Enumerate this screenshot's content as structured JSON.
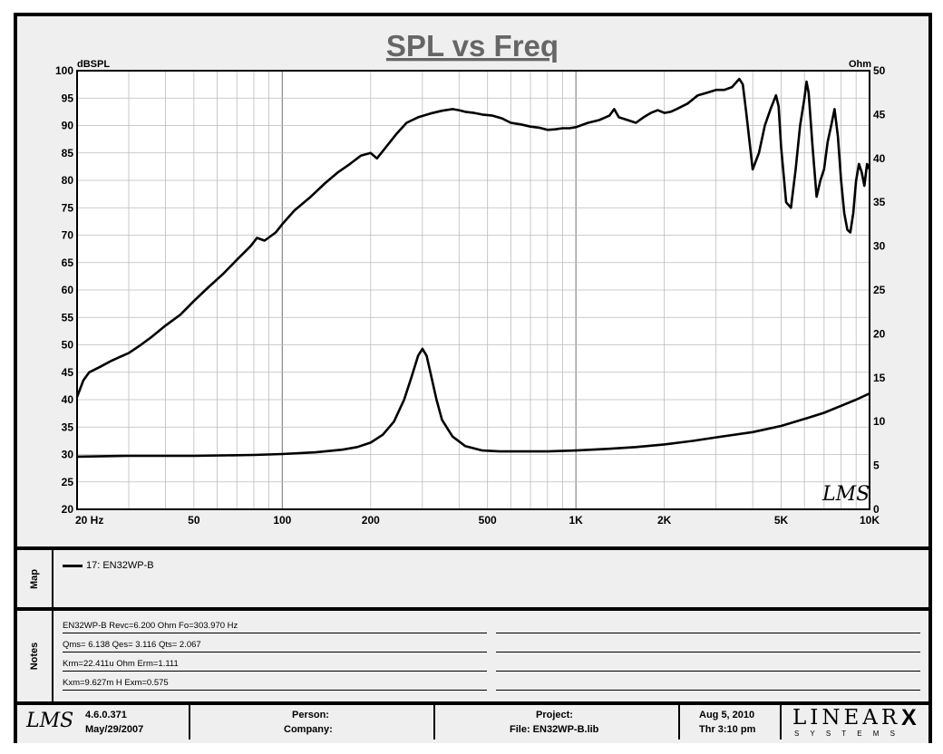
{
  "chart_data": {
    "type": "line",
    "title": "SPL vs Freq",
    "left_axis_unit": "dBSPL",
    "right_axis_unit": "Ohm",
    "x_scale": "log",
    "xlim": [
      20,
      10000
    ],
    "ylim_left": [
      20,
      100
    ],
    "ylim_right": [
      0,
      50
    ],
    "x_tick_labels": [
      {
        "value": 20,
        "label": "20  Hz"
      },
      {
        "value": 50,
        "label": "50"
      },
      {
        "value": 100,
        "label": "100"
      },
      {
        "value": 200,
        "label": "200"
      },
      {
        "value": 500,
        "label": "500"
      },
      {
        "value": 1000,
        "label": "1K"
      },
      {
        "value": 2000,
        "label": "2K"
      },
      {
        "value": 5000,
        "label": "5K"
      },
      {
        "value": 10000,
        "label": "10K"
      }
    ],
    "y_left_ticks": [
      20,
      25,
      30,
      35,
      40,
      45,
      50,
      55,
      60,
      65,
      70,
      75,
      80,
      85,
      90,
      95,
      100
    ],
    "y_right_ticks": [
      0,
      5,
      10,
      15,
      20,
      25,
      30,
      35,
      40,
      45,
      50
    ],
    "grid": true,
    "watermark": "LMS",
    "series": [
      {
        "axis": "left",
        "x": [
          20,
          21,
          22,
          24,
          26,
          28,
          30,
          33,
          36,
          40,
          45,
          50,
          56,
          63,
          70,
          78,
          82,
          87,
          95,
          100,
          110,
          125,
          140,
          155,
          170,
          185,
          200,
          210,
          225,
          245,
          265,
          290,
          320,
          350,
          380,
          400,
          420,
          450,
          480,
          520,
          560,
          600,
          650,
          700,
          750,
          800,
          850,
          900,
          950,
          1000,
          1100,
          1200,
          1300,
          1350,
          1400,
          1500,
          1600,
          1700,
          1800,
          1900,
          2000,
          2100,
          2200,
          2400,
          2600,
          2800,
          3000,
          3200,
          3400,
          3600,
          3700,
          3800,
          4000,
          4200,
          4400,
          4600,
          4800,
          4900,
          5000,
          5200,
          5400,
          5600,
          5800,
          6000,
          6100,
          6200,
          6400,
          6600,
          6800,
          7000,
          7200,
          7400,
          7600,
          7800,
          8000,
          8200,
          8400,
          8600,
          8800,
          9000,
          9200,
          9400,
          9600,
          9800,
          10000
        ],
        "y": [
          40.5,
          43.5,
          45,
          46,
          47,
          47.8,
          48.5,
          50,
          51.5,
          53.5,
          55.5,
          58,
          60.5,
          63,
          65.5,
          68,
          69.5,
          69,
          70.5,
          72,
          74.5,
          77,
          79.5,
          81.5,
          83,
          84.5,
          85,
          84,
          86,
          88.5,
          90.5,
          91.5,
          92.2,
          92.7,
          93,
          92.8,
          92.5,
          92.3,
          92,
          91.8,
          91.3,
          90.5,
          90.2,
          89.8,
          89.6,
          89.2,
          89.3,
          89.5,
          89.5,
          89.7,
          90.5,
          91,
          91.8,
          93,
          91.5,
          91,
          90.5,
          91.5,
          92.3,
          92.8,
          92.3,
          92.5,
          93,
          94,
          95.5,
          96,
          96.5,
          96.5,
          97,
          98.5,
          97.5,
          92.5,
          82,
          85,
          90,
          93,
          95.5,
          93.5,
          86,
          76,
          75,
          82,
          90,
          95,
          98,
          96,
          86,
          77,
          80,
          82,
          87,
          90,
          93,
          88,
          80,
          74,
          71,
          70.5,
          74,
          80,
          83,
          81.5,
          79,
          83,
          82
        ]
      },
      {
        "axis": "right",
        "x": [
          20,
          30,
          50,
          80,
          100,
          130,
          160,
          180,
          200,
          220,
          240,
          260,
          275,
          290,
          300,
          310,
          320,
          335,
          350,
          380,
          420,
          480,
          550,
          650,
          800,
          1000,
          1300,
          1600,
          2000,
          2500,
          3000,
          4000,
          5000,
          6000,
          7000,
          8000,
          9000,
          10000
        ],
        "y": [
          6.0,
          6.1,
          6.1,
          6.2,
          6.3,
          6.5,
          6.8,
          7.1,
          7.6,
          8.5,
          10.0,
          12.5,
          15.0,
          17.5,
          18.3,
          17.5,
          15.5,
          12.5,
          10.2,
          8.3,
          7.2,
          6.7,
          6.6,
          6.6,
          6.6,
          6.7,
          6.9,
          7.1,
          7.4,
          7.8,
          8.2,
          8.8,
          9.5,
          10.3,
          11.0,
          11.8,
          12.5,
          13.2
        ]
      }
    ]
  },
  "map": {
    "label": "Map",
    "entries": [
      "17: EN32WP-B"
    ]
  },
  "notes": {
    "label": "Notes",
    "lines": [
      "EN32WP-B Revc=6.200 Ohm  Fo=303.970 Hz",
      "Qms= 6.138  Qes= 3.116  Qts= 2.067",
      "Krm=22.411u Ohm  Erm=1.111",
      "Kxm=9.627m H  Exm=0.575"
    ]
  },
  "footer": {
    "logo": "LMS",
    "version": "4.6.0.371",
    "version_date": "May/29/2007",
    "person_label": "Person:",
    "company_label": "Company:",
    "project_label": "Project:",
    "file_label": "File: EN32WP-B.lib",
    "date": "Aug  5, 2010",
    "day_time": "Thr  3:10 pm",
    "brand_top": "LINEAR",
    "brand_x": "X",
    "brand_bottom": "S Y S T E M S"
  }
}
